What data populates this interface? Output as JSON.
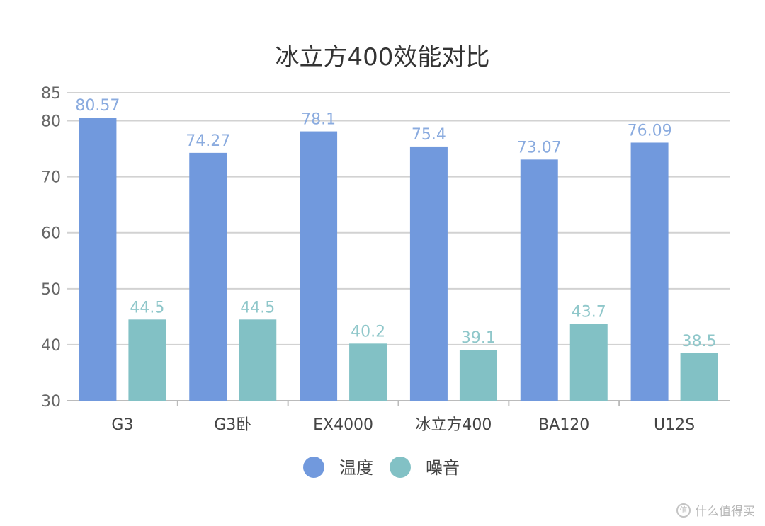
{
  "chart_data": {
    "type": "bar",
    "title": "冰立方400效能对比",
    "categories": [
      "G3",
      "G3卧",
      "EX4000",
      "冰立方400",
      "BA120",
      "U12S"
    ],
    "series": [
      {
        "name": "温度",
        "values": [
          80.57,
          74.27,
          78.1,
          75.4,
          73.07,
          76.09
        ],
        "color": "#7199dd"
      },
      {
        "name": "噪音",
        "values": [
          44.5,
          44.5,
          40.2,
          39.1,
          43.7,
          38.5
        ],
        "color": "#82c1c5"
      }
    ],
    "yticks": [
      30,
      40,
      50,
      60,
      70,
      80,
      85
    ],
    "ylim": [
      30,
      85
    ],
    "grid": true,
    "legend_position": "bottom-center",
    "label_colors": [
      "#8aabdf",
      "#8fc7ca"
    ]
  },
  "watermark": {
    "icon": "值",
    "text": "什么值得买"
  }
}
